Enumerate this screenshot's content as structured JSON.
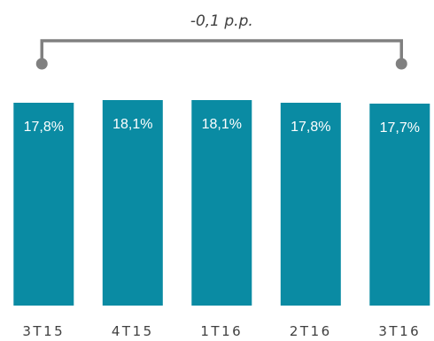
{
  "chart_data": {
    "type": "bar",
    "categories": [
      "3T15",
      "4T15",
      "1T16",
      "2T16",
      "3T16"
    ],
    "values": [
      17.8,
      18.1,
      18.1,
      17.8,
      17.7
    ],
    "value_labels": [
      "17,8%",
      "18,1%",
      "18,1%",
      "17,8%",
      "17,7%"
    ],
    "unit": "%",
    "title": "",
    "xlabel": "",
    "ylabel": "",
    "grid": false,
    "legend": "none",
    "annotation": {
      "text": "-0,1 p.p.",
      "from_category": "3T15",
      "to_category": "3T16"
    },
    "colors": {
      "bar": "#0A8BA3",
      "bracket": "#808080",
      "value_text": "#FFFFFF",
      "axis_text": "#404040"
    }
  }
}
